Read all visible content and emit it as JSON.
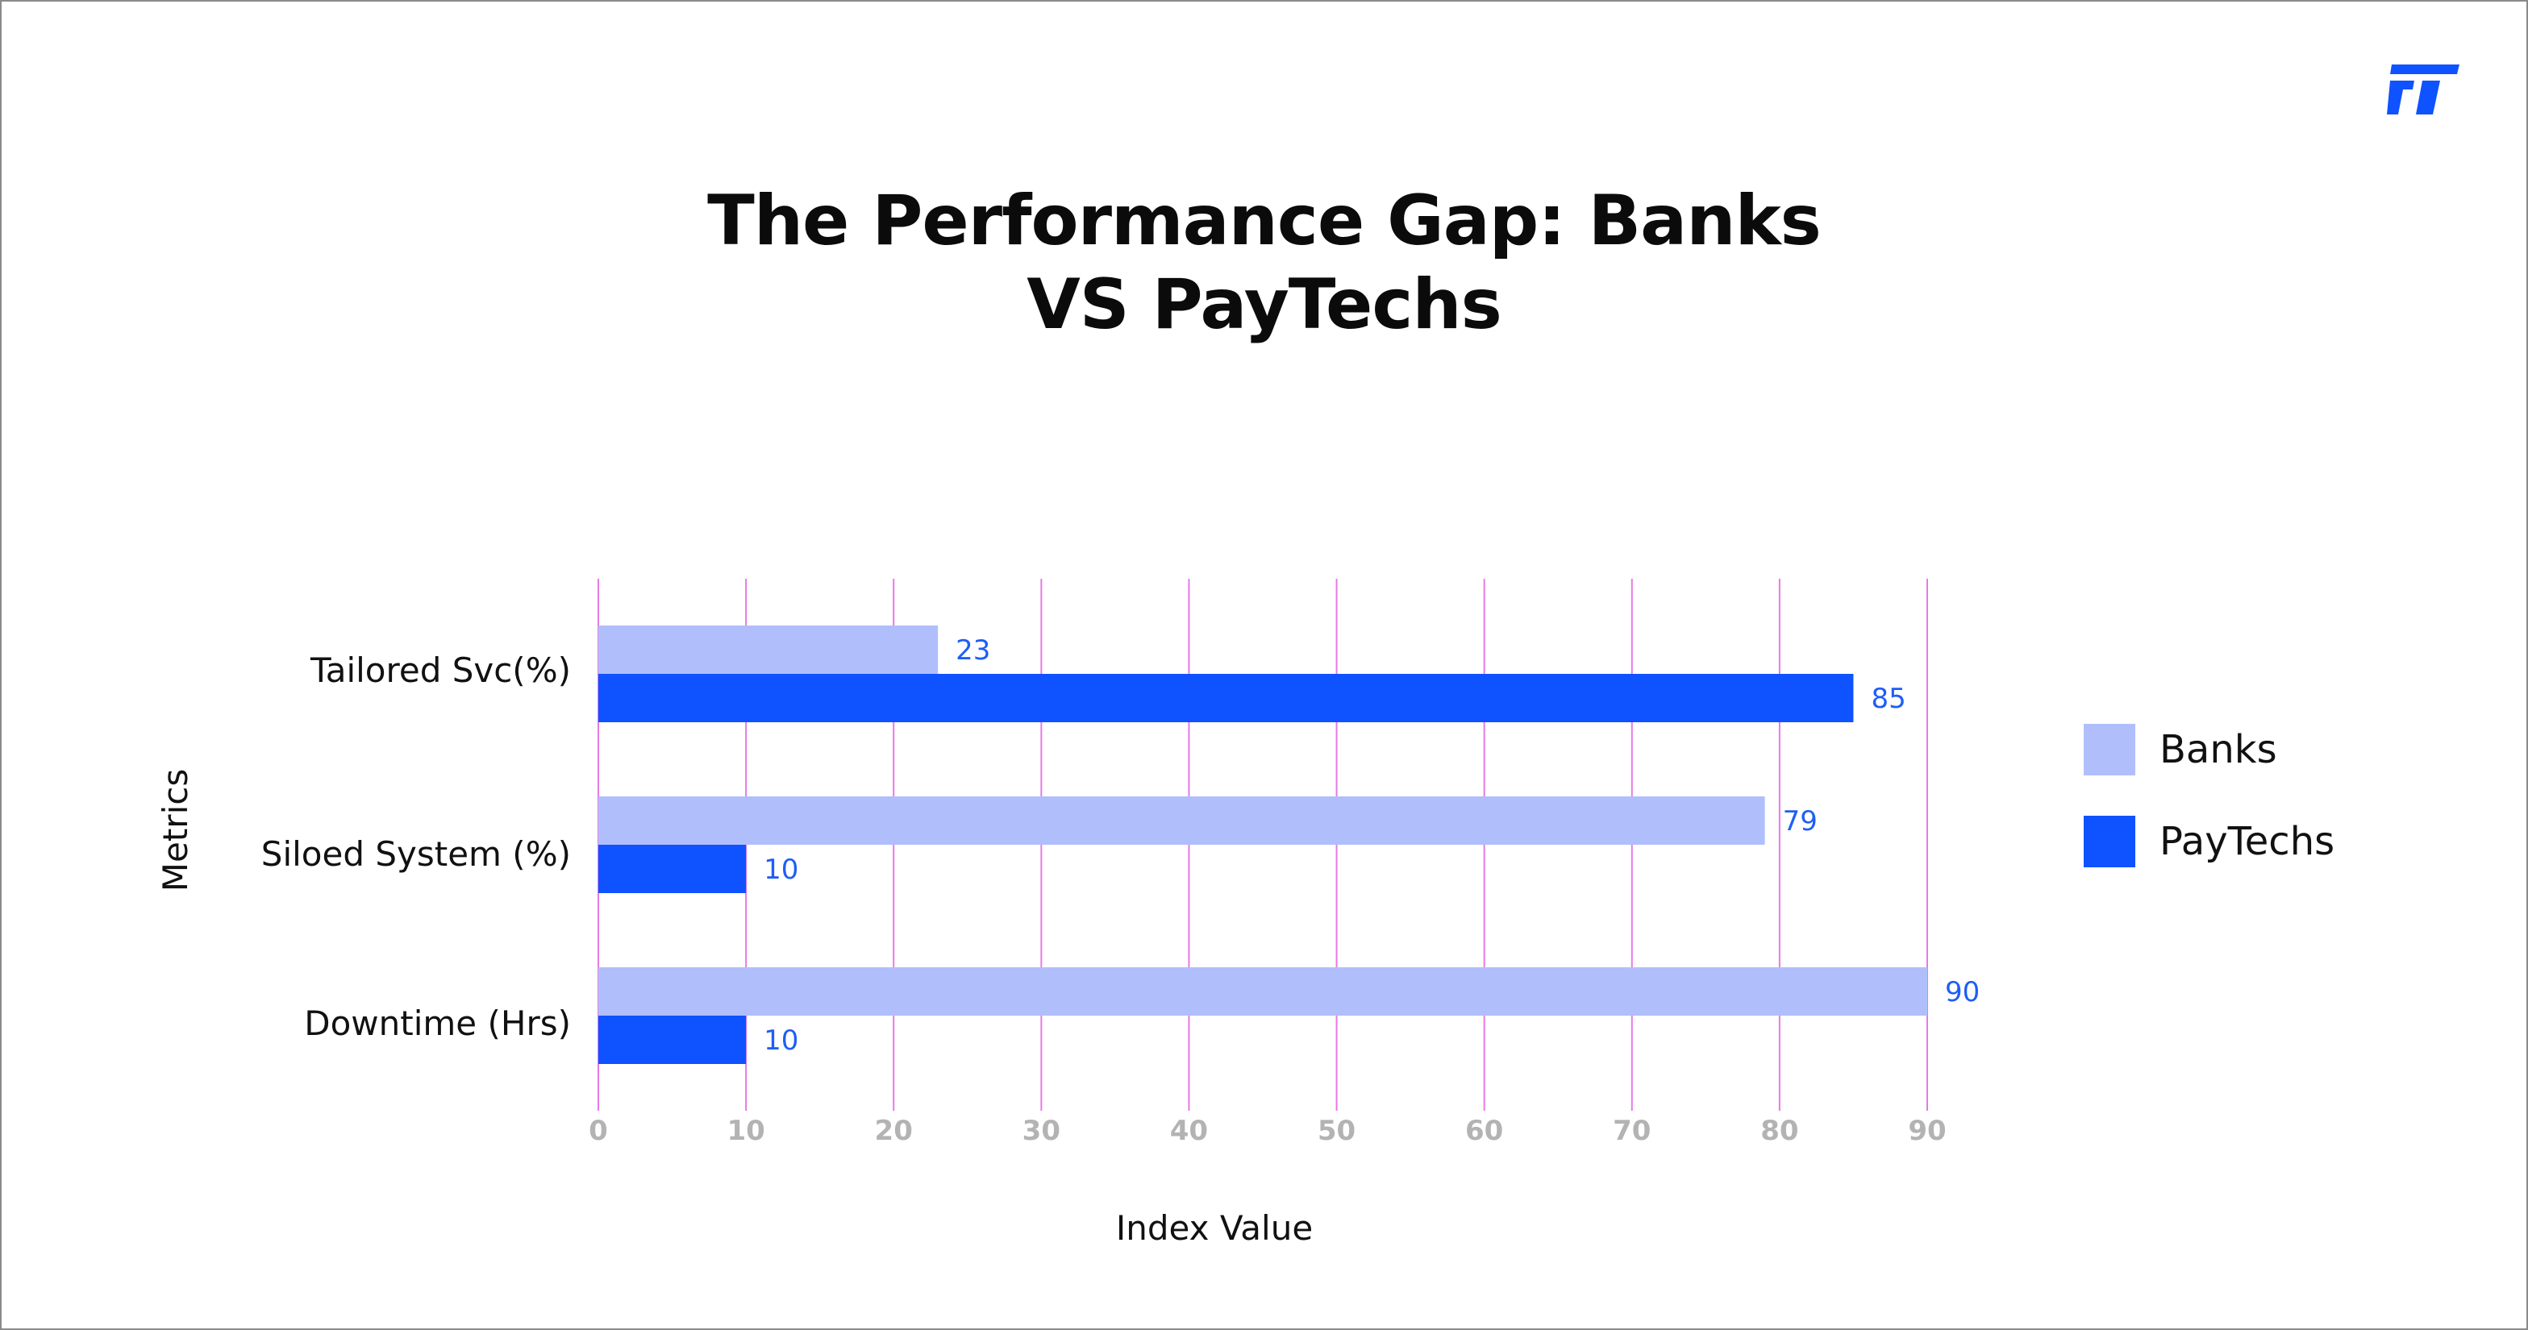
{
  "title_line1": "The Performance Gap: Banks",
  "title_line2": "VS PayTechs",
  "logo_icon": "ft-logo-icon",
  "colors": {
    "banks": "#b0bffb",
    "paytechs": "#0f52ff",
    "grid": "#e879e6",
    "value_label": "#1f5ef5",
    "tick_label": "#b3b3b3"
  },
  "chart_data": {
    "type": "bar",
    "orientation": "horizontal",
    "title": "The Performance Gap: Banks VS PayTechs",
    "categories": [
      "Tailored Svc(%)",
      "Siloed System (%)",
      "Downtime (Hrs)"
    ],
    "series": [
      {
        "name": "Banks",
        "values": [
          23,
          79,
          90
        ]
      },
      {
        "name": "PayTechs",
        "values": [
          85,
          10,
          10
        ]
      }
    ],
    "xlabel": "Index Value",
    "ylabel": "Metrics",
    "xlim": [
      0,
      90
    ],
    "xticks": [
      "0",
      "10",
      "20",
      "30",
      "40",
      "50",
      "60",
      "70",
      "80",
      "90"
    ],
    "grid": "vertical",
    "legend": "right",
    "data_labels": true
  }
}
